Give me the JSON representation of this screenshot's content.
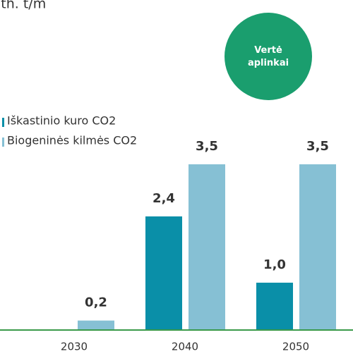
{
  "chart_data": {
    "type": "bar",
    "unit_label": "lth. t/m",
    "badge": "Vertė aplinkai",
    "categories": [
      "2030",
      "2040",
      "2050"
    ],
    "series": [
      {
        "name": "Iškastinio kuro CO2",
        "color": "#0a8fa8",
        "values": [
          null,
          2.4,
          1.0
        ],
        "value_labels": [
          null,
          "2,4",
          "1,0"
        ]
      },
      {
        "name": "Biogeninės kilmės CO2",
        "color": "#86c0d4",
        "values": [
          0.2,
          3.5,
          3.5
        ],
        "value_labels": [
          "0,2",
          "3,5",
          "3,5"
        ]
      }
    ],
    "baseline_color": "#3a9a4a",
    "badge_color": "#1a9e6e"
  }
}
